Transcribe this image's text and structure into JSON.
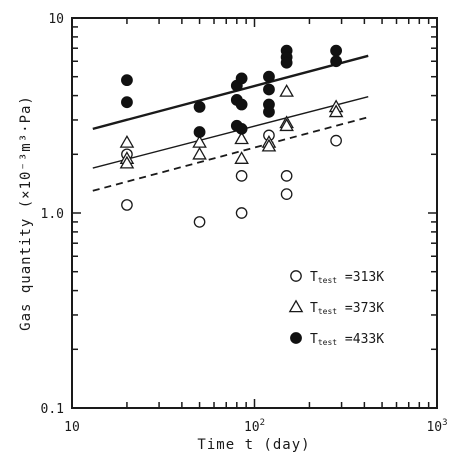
{
  "chart_data": {
    "type": "scatter",
    "xlabel": "Time t (day)",
    "ylabel": "Gas quantity (×10⁻³m³·Pa)",
    "xscale": "log",
    "yscale": "log",
    "xlim": [
      10,
      1000
    ],
    "ylim": [
      0.1,
      10
    ],
    "x_ticks": [
      {
        "label": "10",
        "sup": ""
      },
      {
        "label": "10",
        "sup": "2"
      },
      {
        "label": "10",
        "sup": "3"
      }
    ],
    "y_ticks": [
      "0.1",
      "1.0",
      "10"
    ],
    "legend_position": "lower-right",
    "series": [
      {
        "name": "T_test =313K",
        "legend_main": "T",
        "legend_sub": "test",
        "legend_value": " =313K",
        "marker": "open-circle",
        "points": [
          [
            20,
            2.0
          ],
          [
            20,
            1.1
          ],
          [
            50,
            0.9
          ],
          [
            85,
            1.55
          ],
          [
            85,
            1.0
          ],
          [
            120,
            2.5
          ],
          [
            150,
            1.55
          ],
          [
            150,
            1.25
          ],
          [
            280,
            2.35
          ]
        ]
      },
      {
        "name": "T_test =373K",
        "legend_main": "T",
        "legend_sub": "test",
        "legend_value": " =373K",
        "marker": "open-triangle",
        "points": [
          [
            20,
            2.3
          ],
          [
            20,
            1.9
          ],
          [
            20,
            1.8
          ],
          [
            50,
            2.3
          ],
          [
            50,
            2.0
          ],
          [
            85,
            2.4
          ],
          [
            85,
            1.9
          ],
          [
            120,
            2.3
          ],
          [
            120,
            2.2
          ],
          [
            150,
            4.2
          ],
          [
            150,
            2.9
          ],
          [
            150,
            2.8
          ],
          [
            280,
            3.5
          ],
          [
            280,
            3.3
          ]
        ]
      },
      {
        "name": "T_test =433K",
        "legend_main": "T",
        "legend_sub": "test",
        "legend_value": " =433K",
        "marker": "filled-circle",
        "points": [
          [
            20,
            4.8
          ],
          [
            20,
            3.7
          ],
          [
            50,
            3.5
          ],
          [
            50,
            2.6
          ],
          [
            80,
            4.5
          ],
          [
            80,
            3.8
          ],
          [
            80,
            2.8
          ],
          [
            85,
            4.9
          ],
          [
            85,
            3.6
          ],
          [
            85,
            2.7
          ],
          [
            120,
            5.0
          ],
          [
            120,
            4.3
          ],
          [
            120,
            3.6
          ],
          [
            120,
            3.3
          ],
          [
            150,
            6.8
          ],
          [
            150,
            6.3
          ],
          [
            150,
            5.9
          ],
          [
            280,
            6.8
          ],
          [
            280,
            6.0
          ]
        ]
      }
    ],
    "fit_lines": [
      {
        "series": "T_test =433K",
        "style": "solid-thick",
        "x": [
          13,
          420
        ],
        "y": [
          2.7,
          6.4
        ]
      },
      {
        "series": "T_test =373K",
        "style": "solid",
        "x": [
          13,
          420
        ],
        "y": [
          1.7,
          3.95
        ]
      },
      {
        "series": "T_test =313K",
        "style": "dashed",
        "x": [
          13,
          420
        ],
        "y": [
          1.3,
          3.1
        ]
      }
    ],
    "grid": false
  }
}
